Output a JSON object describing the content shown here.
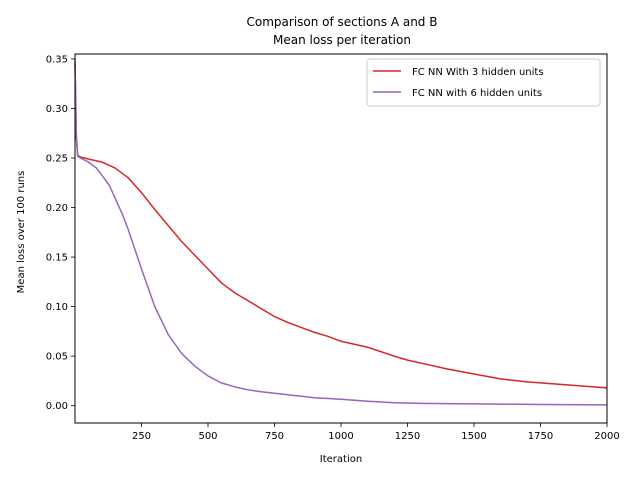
{
  "chart_data": {
    "type": "line",
    "title": "Comparison of sections A and B",
    "subtitle": "Mean loss per iteration",
    "xlabel": "Iteration",
    "ylabel": "Mean loss over 100 runs",
    "xlim": [
      0,
      2000
    ],
    "ylim": [
      -0.0175,
      0.355
    ],
    "xticks": [
      250,
      500,
      750,
      1000,
      1250,
      1500,
      1750,
      2000
    ],
    "yticks": [
      0.0,
      0.05,
      0.1,
      0.15,
      0.2,
      0.25,
      0.3,
      0.35
    ],
    "xtick_labels": [
      "250",
      "500",
      "750",
      "1000",
      "1250",
      "1500",
      "1750",
      "2000"
    ],
    "ytick_labels": [
      "0.00",
      "0.05",
      "0.10",
      "0.15",
      "0.20",
      "0.25",
      "0.30",
      "0.35"
    ],
    "grid": false,
    "legend_position": "upper right",
    "series": [
      {
        "name": "FC NN With 3 hidden units",
        "color": "#d62728",
        "points": [
          [
            0,
            0.345
          ],
          [
            5,
            0.27
          ],
          [
            10,
            0.253
          ],
          [
            20,
            0.251
          ],
          [
            50,
            0.249
          ],
          [
            100,
            0.246
          ],
          [
            150,
            0.24
          ],
          [
            200,
            0.23
          ],
          [
            250,
            0.215
          ],
          [
            300,
            0.198
          ],
          [
            350,
            0.182
          ],
          [
            400,
            0.166
          ],
          [
            450,
            0.152
          ],
          [
            500,
            0.138
          ],
          [
            550,
            0.124
          ],
          [
            600,
            0.114
          ],
          [
            650,
            0.106
          ],
          [
            700,
            0.098
          ],
          [
            750,
            0.09
          ],
          [
            800,
            0.084
          ],
          [
            850,
            0.079
          ],
          [
            900,
            0.074
          ],
          [
            950,
            0.07
          ],
          [
            1000,
            0.065
          ],
          [
            1100,
            0.059
          ],
          [
            1200,
            0.05
          ],
          [
            1250,
            0.046
          ],
          [
            1300,
            0.043
          ],
          [
            1400,
            0.037
          ],
          [
            1500,
            0.032
          ],
          [
            1600,
            0.027
          ],
          [
            1700,
            0.024
          ],
          [
            1800,
            0.022
          ],
          [
            1900,
            0.02
          ],
          [
            2000,
            0.018
          ]
        ]
      },
      {
        "name": "FC NN with 6 hidden units",
        "color": "#9467bd",
        "points": [
          [
            0,
            0.35
          ],
          [
            5,
            0.275
          ],
          [
            10,
            0.252
          ],
          [
            20,
            0.25
          ],
          [
            50,
            0.246
          ],
          [
            80,
            0.24
          ],
          [
            100,
            0.233
          ],
          [
            130,
            0.222
          ],
          [
            150,
            0.21
          ],
          [
            180,
            0.192
          ],
          [
            200,
            0.178
          ],
          [
            250,
            0.138
          ],
          [
            300,
            0.1
          ],
          [
            350,
            0.072
          ],
          [
            400,
            0.053
          ],
          [
            450,
            0.04
          ],
          [
            500,
            0.03
          ],
          [
            550,
            0.023
          ],
          [
            600,
            0.019
          ],
          [
            650,
            0.016
          ],
          [
            700,
            0.014
          ],
          [
            800,
            0.011
          ],
          [
            900,
            0.008
          ],
          [
            1000,
            0.0065
          ],
          [
            1100,
            0.0045
          ],
          [
            1200,
            0.003
          ],
          [
            1300,
            0.0023
          ],
          [
            1500,
            0.0018
          ],
          [
            1750,
            0.0012
          ],
          [
            2000,
            0.0008
          ]
        ]
      }
    ]
  }
}
